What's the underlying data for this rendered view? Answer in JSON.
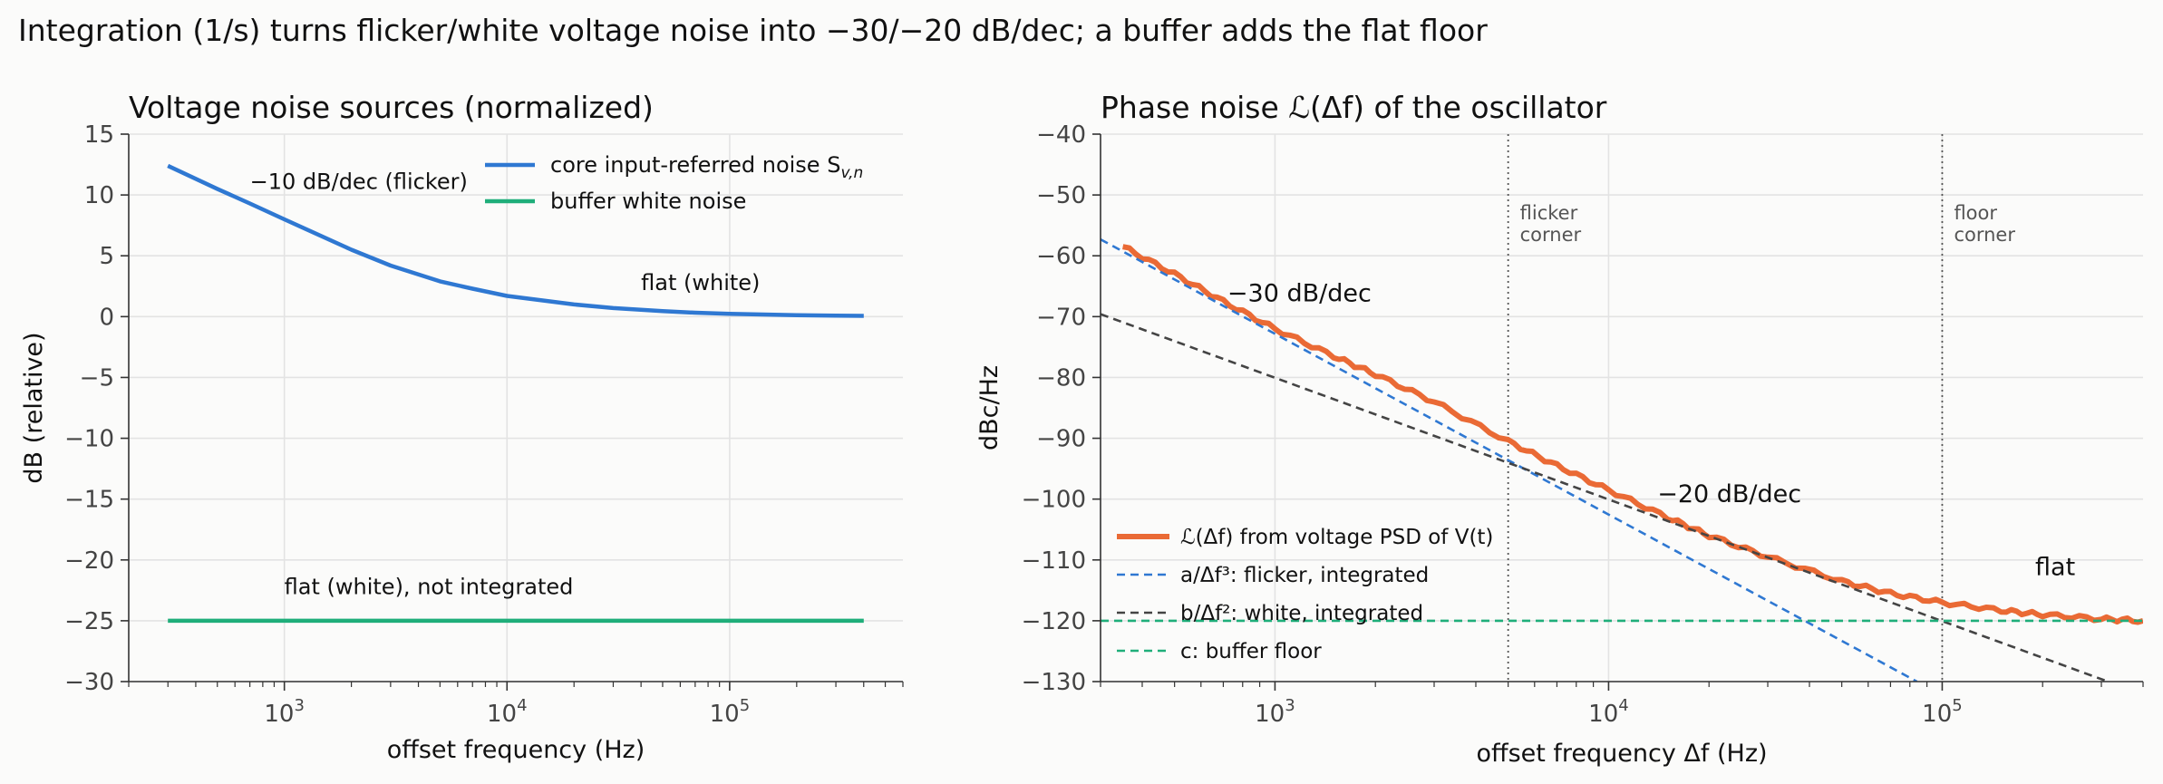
{
  "figure": {
    "suptitle": "Integration (1/s) turns flicker/white voltage noise into −30/−20 dB/dec; a buffer adds the flat floor"
  },
  "chart_data": [
    {
      "type": "line",
      "title": "Voltage noise sources (normalized)",
      "xlabel": "offset frequency (Hz)",
      "ylabel": "dB (relative)",
      "xscale": "log",
      "xlim": [
        200,
        600000
      ],
      "ylim": [
        -30,
        15
      ],
      "xticks": [
        {
          "value": 1000,
          "base": "10",
          "exp": "3"
        },
        {
          "value": 10000,
          "base": "10",
          "exp": "4"
        },
        {
          "value": 100000,
          "base": "10",
          "exp": "5"
        }
      ],
      "yticks": [
        15,
        10,
        5,
        0,
        -5,
        -10,
        -15,
        -20,
        -25,
        -30
      ],
      "ytick_labels": [
        "15",
        "10",
        "5",
        "0",
        "−5",
        "−10",
        "−15",
        "−20",
        "−25",
        "−30"
      ],
      "grid": true,
      "legend": "top-right",
      "series": [
        {
          "name": "core input-referred noise S",
          "name_sub": "v,n",
          "color": "#2f78d2",
          "x": [
            300,
            500,
            700,
            1000,
            2000,
            3000,
            5000,
            7000,
            10000,
            20000,
            30000,
            50000,
            70000,
            100000,
            200000,
            300000,
            400000
          ],
          "y": [
            12.4,
            10.5,
            9.3,
            8.0,
            5.5,
            4.2,
            2.9,
            2.3,
            1.7,
            1.0,
            0.7,
            0.45,
            0.32,
            0.23,
            0.12,
            0.08,
            0.06
          ]
        },
        {
          "name": "buffer white noise",
          "color": "#1fae7a",
          "x": [
            300,
            400000
          ],
          "y": [
            -25,
            -25
          ]
        }
      ],
      "annotations": [
        {
          "text": "−10 dB/dec (flicker)",
          "x": 700,
          "y": 10.5
        },
        {
          "text": "flat (white)",
          "x": 40000,
          "y": 2.2
        },
        {
          "text": "flat (white), not integrated",
          "x": 1000,
          "y": -22.8
        }
      ]
    },
    {
      "type": "line",
      "title": "Phase noise ℒ(Δf) of the oscillator",
      "xlabel": "offset frequency Δf (Hz)",
      "ylabel": "dBc/Hz",
      "xscale": "log",
      "xlim": [
        300,
        400000
      ],
      "ylim": [
        -130,
        -40
      ],
      "xticks": [
        {
          "value": 1000,
          "base": "10",
          "exp": "3"
        },
        {
          "value": 10000,
          "base": "10",
          "exp": "4"
        },
        {
          "value": 100000,
          "base": "10",
          "exp": "5"
        }
      ],
      "yticks": [
        -40,
        -50,
        -60,
        -70,
        -80,
        -90,
        -100,
        -110,
        -120,
        -130
      ],
      "ytick_labels": [
        "−40",
        "−50",
        "−60",
        "−70",
        "−80",
        "−90",
        "−100",
        "−110",
        "−120",
        "−130"
      ],
      "grid": true,
      "legend": "lower-left",
      "series": [
        {
          "name": "ℒ(Δf) from voltage PSD of V(t)",
          "color": "#ea6a35",
          "x": [
            350,
            500,
            700,
            1000,
            1500,
            2000,
            3000,
            5000,
            7000,
            10000,
            15000,
            20000,
            30000,
            50000,
            70000,
            100000,
            150000,
            200000,
            300000,
            400000
          ],
          "y": [
            -58.5,
            -63.0,
            -67.5,
            -72.0,
            -76.5,
            -79.5,
            -84.0,
            -90.5,
            -94.5,
            -98.5,
            -103.0,
            -106.0,
            -109.5,
            -113.5,
            -115.5,
            -117.0,
            -118.3,
            -119.0,
            -119.7,
            -120.0
          ]
        },
        {
          "name": "a/Δf³: flicker, integrated",
          "color": "#2f78d2",
          "dash": true,
          "x": [
            300,
            84000
          ],
          "y": [
            -57.3,
            -130
          ]
        },
        {
          "name": "b/Δf²: white, integrated",
          "color": "#444444",
          "dash": true,
          "x": [
            300,
            400000
          ],
          "y": [
            -69.6,
            -132.1
          ]
        },
        {
          "name": "c: buffer floor",
          "color": "#1fae7a",
          "dash": true,
          "x": [
            300,
            400000
          ],
          "y": [
            -120,
            -120
          ]
        }
      ],
      "vlines": [
        {
          "x": 5000,
          "label_1": "flicker",
          "label_2": "corner"
        },
        {
          "x": 100000,
          "label_1": "floor",
          "label_2": "corner"
        }
      ],
      "annotations": [
        {
          "text": "−30 dB/dec",
          "x": 720,
          "y": -67.5
        },
        {
          "text": "−20 dB/dec",
          "x": 14000,
          "y": -100.5
        },
        {
          "text": "flat",
          "x": 190000,
          "y": -112.5
        }
      ]
    }
  ]
}
